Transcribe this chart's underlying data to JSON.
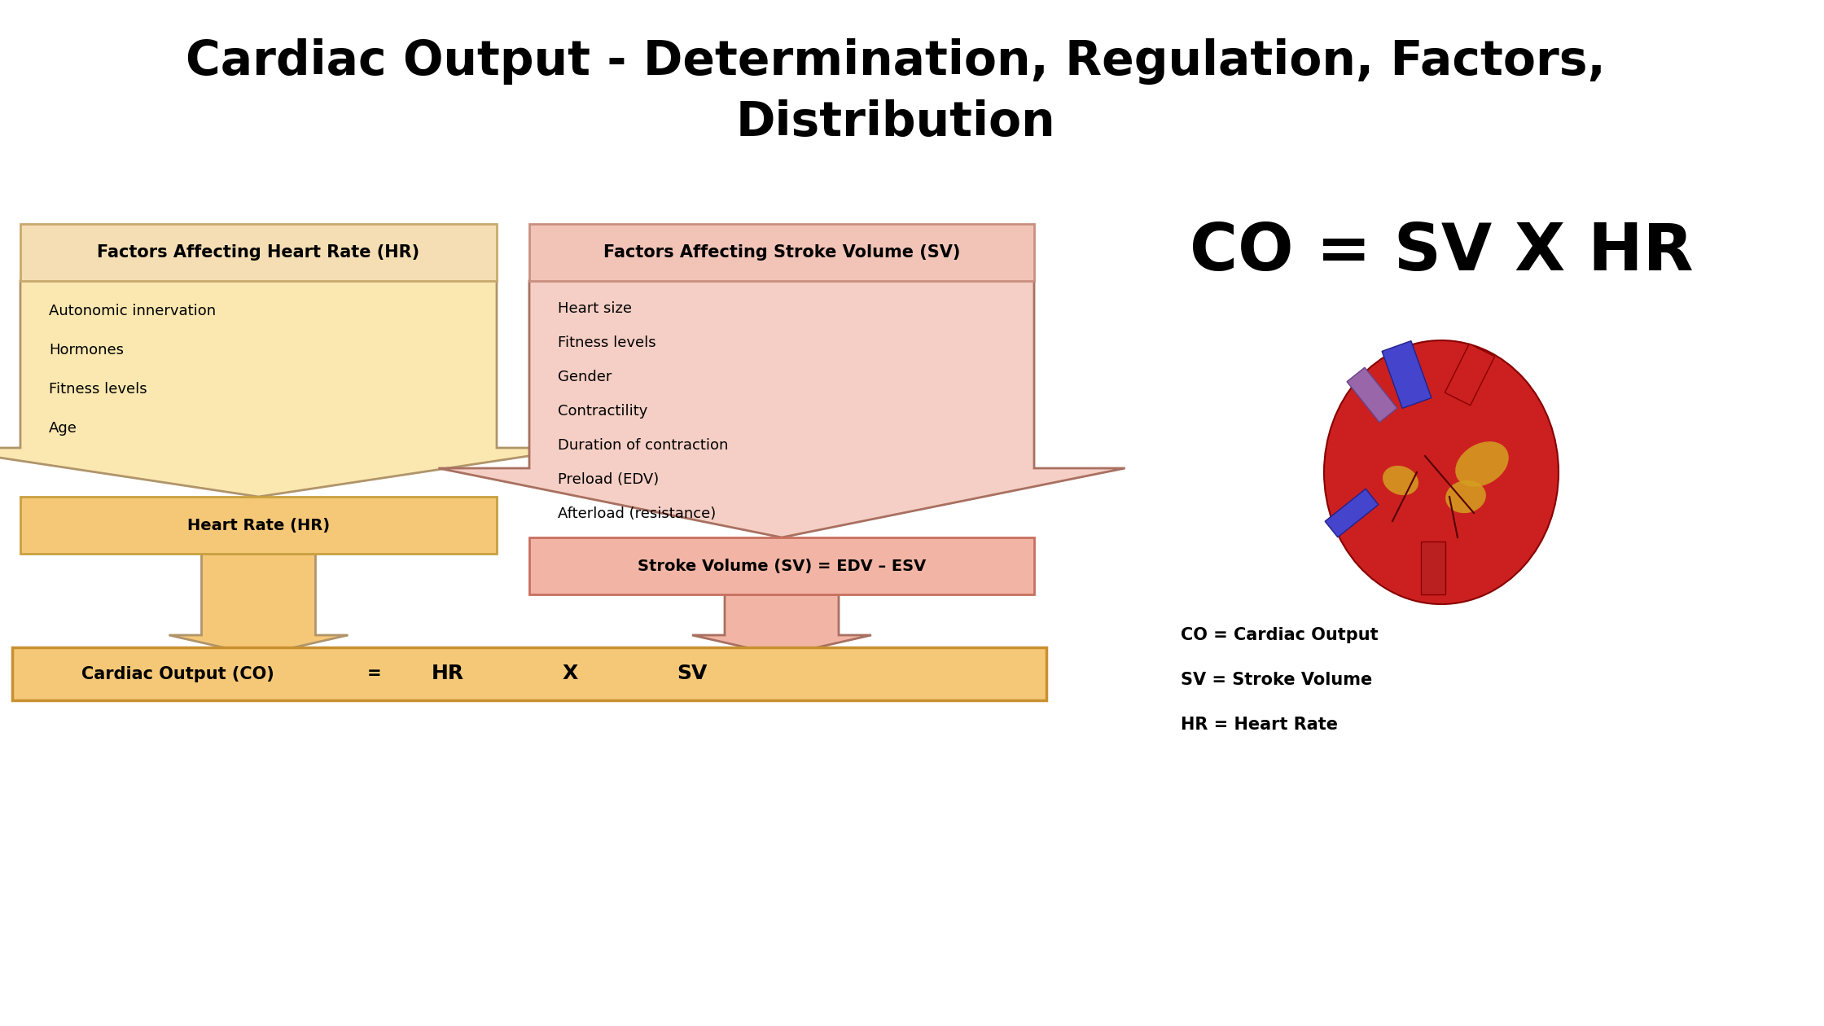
{
  "title_line1": "Cardiac Output - Determination, Regulation, Factors,",
  "title_line2": "Distribution",
  "title_fontsize": 42,
  "title_fontweight": "bold",
  "hr_header": "Factors Affecting Heart Rate (HR)",
  "sv_header": "Factors Affecting Stroke Volume (SV)",
  "hr_items": [
    "Autonomic innervation",
    "Hormones",
    "Fitness levels",
    "Age"
  ],
  "sv_items": [
    "Heart size",
    "Fitness levels",
    "Gender",
    "Contractility",
    "Duration of contraction",
    "Preload (EDV)",
    "Afterload (resistance)"
  ],
  "hr_box_label": "Heart Rate (HR)",
  "sv_box_label": "Stroke Volume (SV) = EDV – ESV",
  "co_label_parts": [
    "Cardiac Output (CO)",
    "=",
    "HR",
    "X",
    "SV"
  ],
  "formula": "CO = SV X HR",
  "abbrev_co": "CO = Cardiac Output",
  "abbrev_sv": "SV = Stroke Volume",
  "abbrev_hr": "HR = Heart Rate",
  "color_hr_header_bg": "#F5DEB3",
  "color_hr_header_border": "#C8A96E",
  "color_hr_arrow_fill": "#FAE8B0",
  "color_hr_arrow_edge": "#B0946A",
  "color_hr_box_bg": "#F5C878",
  "color_hr_box_border": "#C8A040",
  "color_hr_small_arrow": "#F5C878",
  "color_sv_header_bg": "#F2C4B8",
  "color_sv_header_border": "#C89080",
  "color_sv_arrow_fill": "#F5CFC5",
  "color_sv_arrow_edge": "#A87060",
  "color_sv_box_bg": "#F2B5A5",
  "color_sv_box_border": "#C87060",
  "color_sv_small_arrow": "#F2B5A5",
  "color_co_bg": "#F5C878",
  "color_co_border": "#C89030",
  "bg_color": "#FFFFFF",
  "text_color": "#000000"
}
